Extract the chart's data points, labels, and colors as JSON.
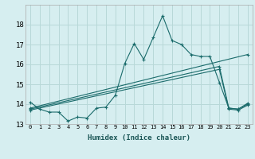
{
  "title": "",
  "xlabel": "Humidex (Indice chaleur)",
  "bg_color": "#d6eef0",
  "grid_color": "#b8d8d8",
  "line_color": "#1a6b6b",
  "xlim": [
    -0.5,
    23.5
  ],
  "ylim": [
    13,
    19
  ],
  "yticks": [
    13,
    14,
    15,
    16,
    17,
    18
  ],
  "xticks": [
    0,
    1,
    2,
    3,
    4,
    5,
    6,
    7,
    8,
    9,
    10,
    11,
    12,
    13,
    14,
    15,
    16,
    17,
    18,
    19,
    20,
    21,
    22,
    23
  ],
  "lines": [
    {
      "x": [
        0,
        1,
        2,
        3,
        4,
        5,
        6,
        7,
        8,
        9,
        10,
        11,
        12,
        13,
        14,
        15,
        16,
        17,
        18,
        19,
        20,
        21,
        22,
        23
      ],
      "y": [
        14.1,
        13.75,
        13.6,
        13.6,
        13.15,
        13.35,
        13.3,
        13.8,
        13.85,
        14.45,
        16.05,
        17.05,
        16.25,
        17.35,
        18.45,
        17.2,
        17.0,
        16.5,
        16.4,
        16.4,
        15.1,
        13.8,
        13.75,
        14.05
      ]
    },
    {
      "x": [
        0,
        23
      ],
      "y": [
        13.8,
        16.5
      ]
    },
    {
      "x": [
        0,
        20,
        21,
        22,
        23
      ],
      "y": [
        13.75,
        15.9,
        13.8,
        13.75,
        14.0
      ]
    },
    {
      "x": [
        0,
        20,
        21,
        22,
        23
      ],
      "y": [
        13.7,
        15.75,
        13.75,
        13.7,
        13.95
      ]
    }
  ]
}
